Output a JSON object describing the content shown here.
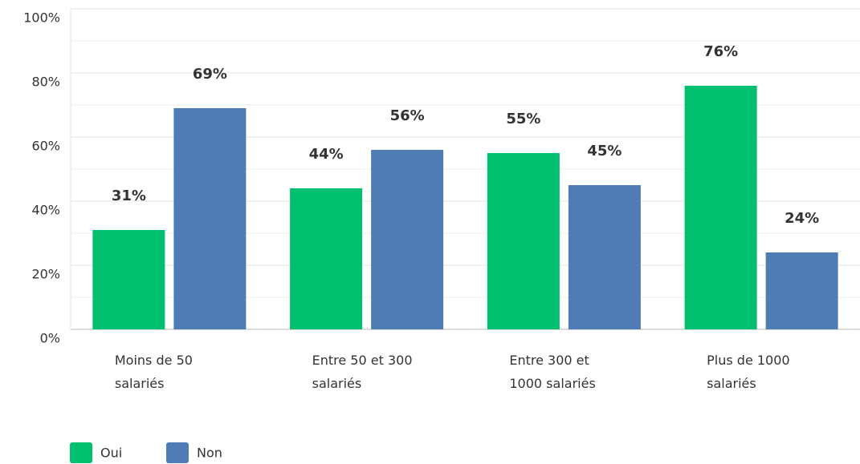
{
  "chart_data": {
    "type": "bar",
    "categories": [
      "Moins de 50 salariés",
      "Entre 50 et 300 salariés",
      "Entre 300 et 1000 salariés",
      "Plus de 1000 salariés"
    ],
    "series": [
      {
        "name": "Oui",
        "color": "#00bf6f",
        "values": [
          31,
          44,
          55,
          76
        ],
        "value_labels": [
          "31%",
          "44%",
          "55%",
          "76%"
        ]
      },
      {
        "name": "Non",
        "color": "#507cb6",
        "values": [
          69,
          56,
          45,
          24
        ],
        "value_labels": [
          "69%",
          "56%",
          "45%",
          "24%"
        ]
      }
    ],
    "ylim": [
      0,
      100
    ],
    "yticks": [
      {
        "value": 0,
        "label": "0%"
      },
      {
        "value": 20,
        "label": "20%"
      },
      {
        "value": 40,
        "label": "40%"
      },
      {
        "value": 60,
        "label": "60%"
      },
      {
        "value": 80,
        "label": "80%"
      },
      {
        "value": 100,
        "label": "100%"
      }
    ],
    "minor_yticks": [
      10,
      30,
      50,
      70,
      90
    ],
    "grid": true,
    "legend": "bottom-left"
  }
}
